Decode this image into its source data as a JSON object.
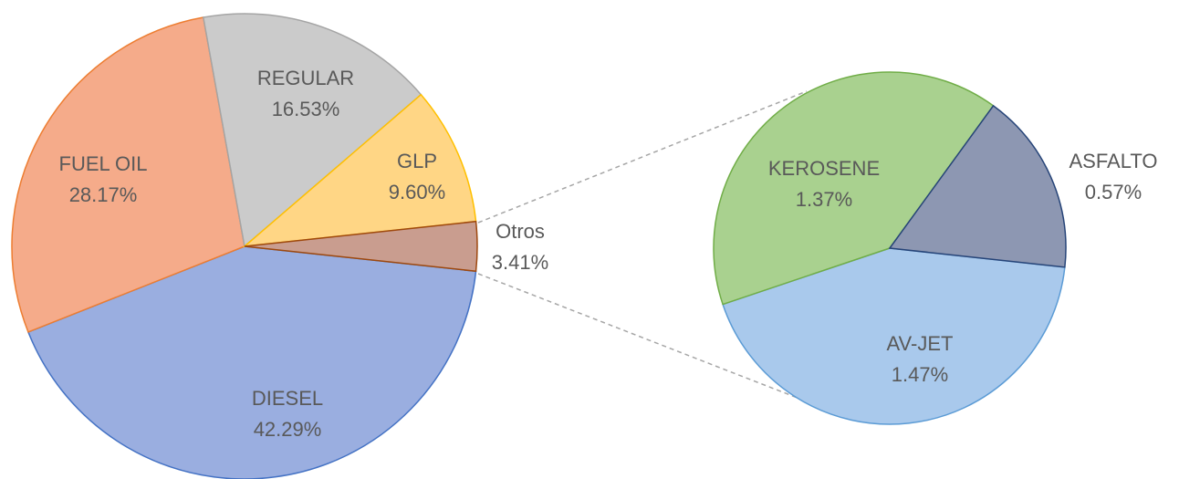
{
  "chart_data": [
    {
      "type": "pie",
      "categories": [
        "DIESEL",
        "FUEL OIL",
        "REGULAR",
        "GLP",
        "Otros"
      ],
      "values": [
        42.29,
        28.17,
        16.53,
        9.6,
        3.41
      ],
      "value_labels": [
        "42.29%",
        "28.17%",
        "16.53%",
        "9.60%",
        "3.41%"
      ],
      "colors": [
        "#9aaee0",
        "#f5ab8a",
        "#cbcbcb",
        "#ffd685",
        "#c99d8f"
      ]
    },
    {
      "type": "pie",
      "categories": [
        "AV-JET",
        "KEROSENE",
        "ASFALTO"
      ],
      "values": [
        1.47,
        1.37,
        0.57
      ],
      "value_labels": [
        "1.47%",
        "1.37%",
        "0.57%"
      ],
      "colors": [
        "#a9c9ec",
        "#a9d18f",
        "#8d97b2"
      ]
    }
  ]
}
